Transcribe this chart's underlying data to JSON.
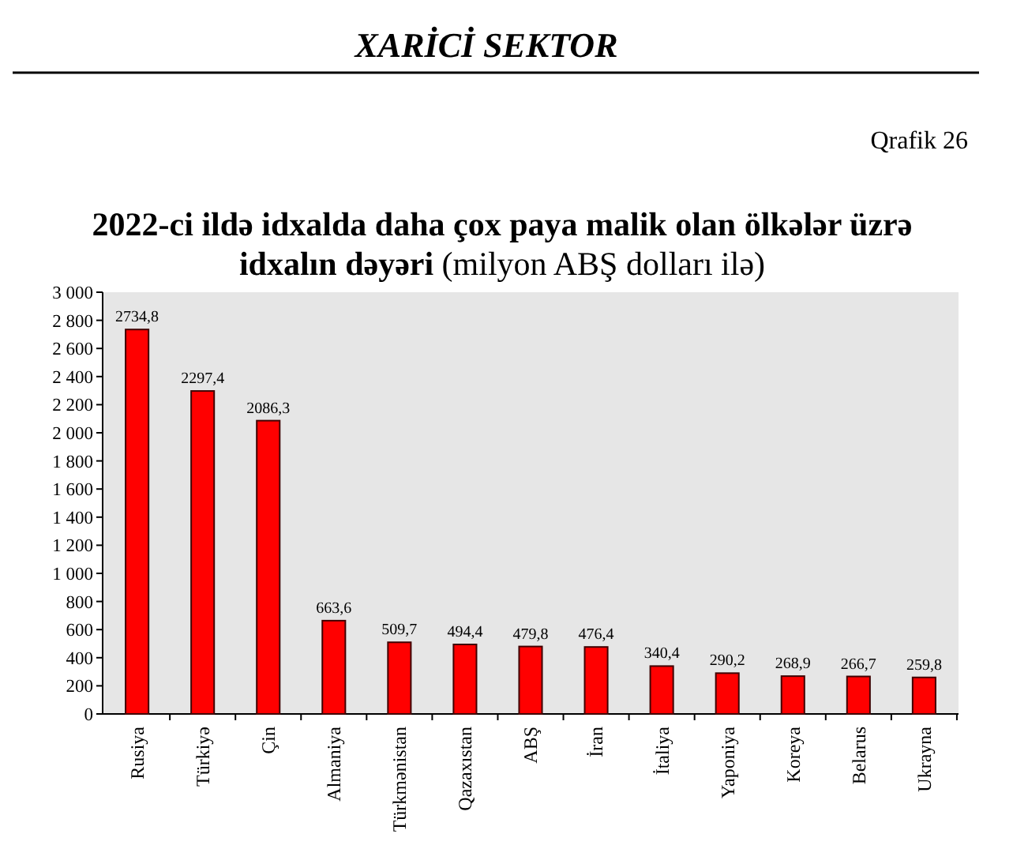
{
  "chart_data": {
    "type": "bar",
    "title": "2022-ci ildə idxalda daha çox paya malik olan ölkələr üzrə idxalın dəyəri",
    "subtitle": "(milyon ABŞ dolları ilə)",
    "annotations": [
      "XARİCİ SEKTOR",
      "Qrafik 26"
    ],
    "categories": [
      "Rusiya",
      "Türkiyə",
      "Çin",
      "Almaniya",
      "Türkmənistan",
      "Qazaxıstan",
      "ABŞ",
      "İran",
      "İtaliya",
      "Yaponiya",
      "Koreya",
      "Belarus",
      "Ukrayna"
    ],
    "values": [
      2734.8,
      2297.4,
      2086.3,
      663.6,
      509.7,
      494.4,
      479.8,
      476.4,
      340.4,
      290.2,
      268.9,
      266.7,
      259.8
    ],
    "value_labels": [
      "2734,8",
      "2297,4",
      "2086,3",
      "663,6",
      "509,7",
      "494,4",
      "479,8",
      "476,4",
      "340,4",
      "290,2",
      "268,9",
      "266,7",
      "259,8"
    ],
    "color": "#ff0000",
    "ylim": [
      0,
      3000
    ],
    "yticks": [
      0,
      200,
      400,
      600,
      800,
      {
        "value": 1000,
        "label": "1 000"
      },
      {
        "value": 1200,
        "label": "1 200"
      },
      {
        "value": 1400,
        "label": "1 400"
      },
      {
        "value": 1600,
        "label": "1 600"
      },
      {
        "value": 1800,
        "label": "1 800"
      },
      {
        "value": 2000,
        "label": "2 000"
      },
      {
        "value": 2200,
        "label": "2 200"
      },
      {
        "value": 2400,
        "label": "2 400"
      },
      {
        "value": 2600,
        "label": "2 600"
      },
      {
        "value": 2800,
        "label": "2 800"
      },
      {
        "value": 3000,
        "label": "3 000"
      }
    ],
    "grid": false
  }
}
